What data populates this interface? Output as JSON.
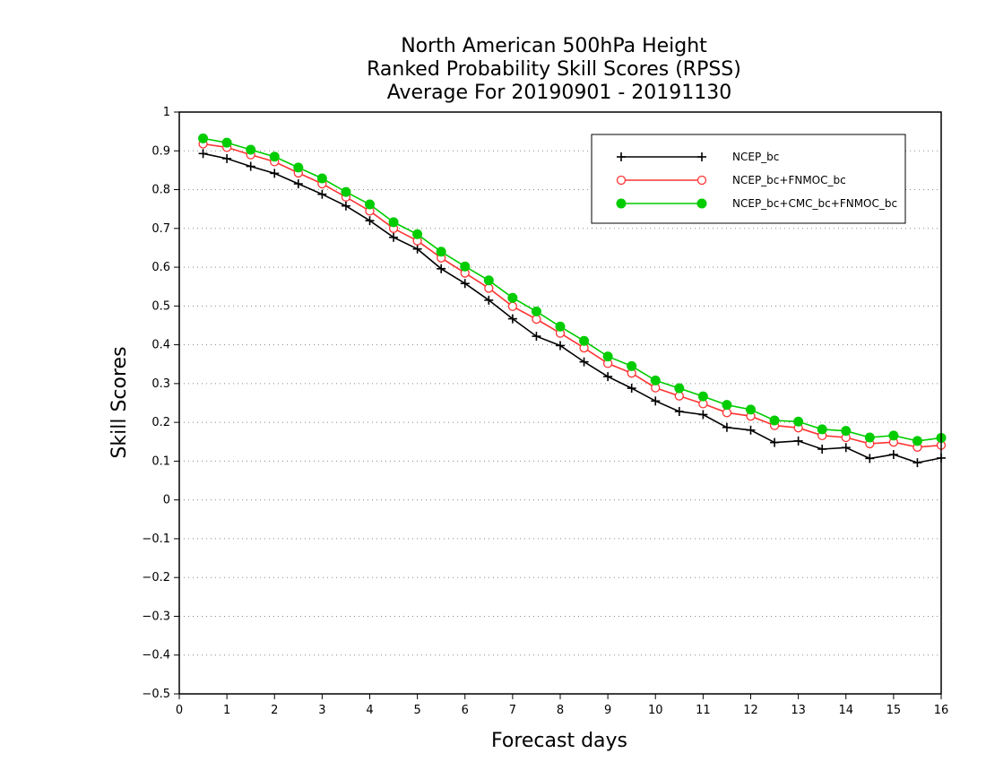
{
  "chart_data": {
    "type": "line",
    "title": [
      "North American 500hPa Height",
      "Ranked Probability Skill Scores (RPSS)",
      "Average For 20190901 - 20191130"
    ],
    "xlabel": "Forecast days",
    "ylabel": "Skill Scores",
    "xlim": [
      0,
      16
    ],
    "ylim": [
      -0.5,
      1
    ],
    "xticks": [
      0,
      1,
      2,
      3,
      4,
      5,
      6,
      7,
      8,
      9,
      10,
      11,
      12,
      13,
      14,
      15,
      16
    ],
    "yticks": [
      -0.5,
      -0.4,
      -0.3,
      -0.2,
      -0.1,
      0,
      0.1,
      0.2,
      0.3,
      0.4,
      0.5,
      0.6,
      0.7,
      0.8,
      0.9,
      1
    ],
    "ytick_labels": [
      "−0.5",
      "−0.4",
      "−0.3",
      "−0.2",
      "−0.1",
      "0",
      "0.1",
      "0.2",
      "0.3",
      "0.4",
      "0.5",
      "0.6",
      "0.7",
      "0.8",
      "0.9",
      "1"
    ],
    "grid": "horizontal dotted",
    "legend_position": "top-right",
    "x": [
      0.5,
      1,
      1.5,
      2,
      2.5,
      3,
      3.5,
      4,
      4.5,
      5,
      5.5,
      6,
      6.5,
      7,
      7.5,
      8,
      8.5,
      9,
      9.5,
      10,
      10.5,
      11,
      11.5,
      12,
      12.5,
      13,
      13.5,
      14,
      14.5,
      15,
      15.5,
      16
    ],
    "series": [
      {
        "name": "NCEP_bc",
        "color": "#000000",
        "marker": "plus",
        "values": [
          0.893,
          0.88,
          0.86,
          0.842,
          0.815,
          0.788,
          0.758,
          0.72,
          0.677,
          0.647,
          0.596,
          0.558,
          0.515,
          0.467,
          0.422,
          0.398,
          0.356,
          0.318,
          0.288,
          0.255,
          0.228,
          0.22,
          0.187,
          0.18,
          0.148,
          0.152,
          0.131,
          0.135,
          0.107,
          0.117,
          0.096,
          0.108
        ]
      },
      {
        "name": "NCEP_bc+FNMOC_bc",
        "color": "#ff3333",
        "marker": "open-circle",
        "values": [
          0.918,
          0.909,
          0.89,
          0.872,
          0.843,
          0.815,
          0.781,
          0.745,
          0.7,
          0.668,
          0.624,
          0.585,
          0.546,
          0.499,
          0.466,
          0.43,
          0.392,
          0.352,
          0.327,
          0.289,
          0.268,
          0.248,
          0.225,
          0.216,
          0.192,
          0.186,
          0.166,
          0.161,
          0.145,
          0.149,
          0.136,
          0.141
        ]
      },
      {
        "name": "NCEP_bc+CMC_bc+FNMOC_bc",
        "color": "#00cc00",
        "marker": "filled-circle",
        "values": [
          0.932,
          0.921,
          0.903,
          0.885,
          0.857,
          0.829,
          0.794,
          0.762,
          0.716,
          0.685,
          0.64,
          0.602,
          0.566,
          0.521,
          0.486,
          0.447,
          0.41,
          0.37,
          0.345,
          0.308,
          0.288,
          0.267,
          0.245,
          0.233,
          0.205,
          0.202,
          0.182,
          0.178,
          0.161,
          0.166,
          0.152,
          0.16
        ]
      }
    ]
  }
}
